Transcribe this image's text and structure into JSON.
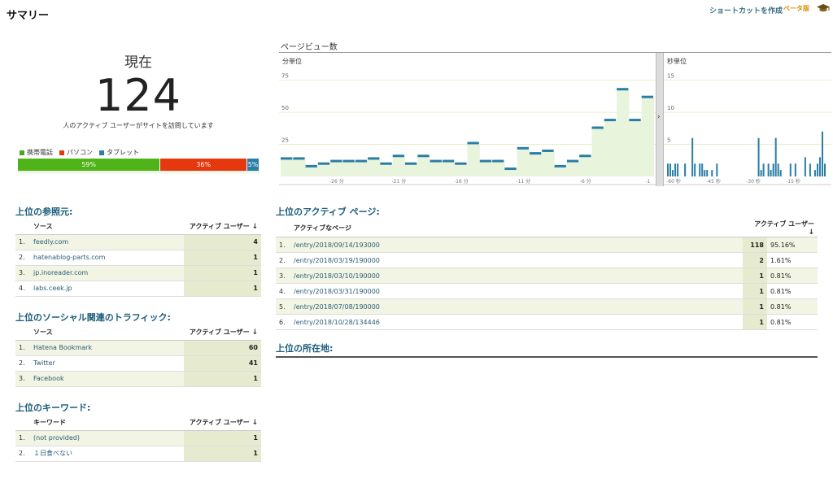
{
  "header": {
    "title": "サマリー",
    "shortcut": "ショートカットを作成",
    "beta": "ベータ版",
    "hat_icon": "graduation-cap-icon"
  },
  "now": {
    "label": "現在",
    "value": "124",
    "desc": "人のアクティブ ユーザーがサイトを訪問しています"
  },
  "devices": {
    "legend": [
      {
        "label": "携帯電話",
        "color": "#4aa61d"
      },
      {
        "label": "パソコン",
        "color": "#e5380e"
      },
      {
        "label": "タブレット",
        "color": "#2a7ea5"
      }
    ],
    "segments": [
      {
        "label": "59%",
        "value": 59,
        "color": "#50b319"
      },
      {
        "label": "36%",
        "value": 36,
        "color": "#e5380e"
      },
      {
        "label": "5%",
        "value": 5,
        "color": "#2a7ea5"
      }
    ]
  },
  "pageviews": {
    "title": "ページビュー数",
    "minutes_label": "分単位",
    "seconds_label": "秒単位"
  },
  "chart_data": [
    {
      "type": "line",
      "title": "分単位",
      "ylim": [
        0,
        90
      ],
      "yticks": [
        25,
        50,
        75
      ],
      "xticks": [
        {
          "x": -26,
          "label": "-26 分"
        },
        {
          "x": -21,
          "label": "-21 分"
        },
        {
          "x": -16,
          "label": "-16 分"
        },
        {
          "x": -11,
          "label": "-11 分"
        },
        {
          "x": -6,
          "label": "-6 分"
        },
        {
          "x": -1,
          "label": "-1"
        }
      ],
      "x": [
        -30,
        -29,
        -28,
        -27,
        -26,
        -25,
        -24,
        -23,
        -22,
        -21,
        -20,
        -19,
        -18,
        -17,
        -16,
        -15,
        -14,
        -13,
        -12,
        -11,
        -10,
        -9,
        -8,
        -7,
        -6,
        -5,
        -4,
        -3,
        -2,
        -1
      ],
      "values": [
        14,
        14,
        8,
        10,
        12,
        12,
        12,
        14,
        10,
        16,
        10,
        16,
        12,
        12,
        10,
        26,
        12,
        12,
        6,
        22,
        18,
        20,
        8,
        12,
        16,
        38,
        44,
        68,
        44,
        62
      ],
      "grid": true
    },
    {
      "type": "bar",
      "title": "秒単位",
      "ylim": [
        0,
        18
      ],
      "yticks": [
        5,
        10,
        15
      ],
      "xticks": [
        {
          "x": -60,
          "label": "-60 秒"
        },
        {
          "x": -45,
          "label": "-45 秒"
        },
        {
          "x": -30,
          "label": "-30 秒"
        },
        {
          "x": -15,
          "label": "-15 秒"
        }
      ],
      "values": [
        2,
        2,
        1,
        2,
        2,
        0,
        0,
        2,
        0,
        0,
        6,
        2,
        0,
        2,
        2,
        1,
        1,
        0,
        1,
        0,
        2,
        0,
        0,
        0,
        0,
        0,
        0,
        0,
        0,
        0,
        0,
        0,
        0,
        0,
        0,
        0,
        0,
        6,
        1,
        2,
        0,
        2,
        1,
        2,
        6,
        2,
        1,
        0,
        0,
        0,
        2,
        0,
        2,
        0,
        0,
        0,
        3,
        0,
        2,
        0,
        1,
        2,
        3,
        7,
        2
      ],
      "grid": true
    }
  ],
  "referrers": {
    "title": "上位の参照元:",
    "col_source": "ソース",
    "col_users": "アクティブ ユーザー",
    "sort_icon": "arrow-down-icon",
    "rows": [
      {
        "n": "1.",
        "label": "feedly.com",
        "value": "4"
      },
      {
        "n": "2.",
        "label": "hatenablog-parts.com",
        "value": "1"
      },
      {
        "n": "3.",
        "label": "jp.inoreader.com",
        "value": "1"
      },
      {
        "n": "4.",
        "label": "labs.ceek.jp",
        "value": "1"
      }
    ]
  },
  "social": {
    "title": "上位のソーシャル関連のトラフィック:",
    "col_source": "ソース",
    "col_users": "アクティブ ユーザー",
    "rows": [
      {
        "n": "1.",
        "label": "Hatena Bookmark",
        "value": "60"
      },
      {
        "n": "2.",
        "label": "Twitter",
        "value": "41"
      },
      {
        "n": "3.",
        "label": "Facebook",
        "value": "1"
      }
    ]
  },
  "keywords": {
    "title": "上位のキーワード:",
    "col_keyword": "キーワード",
    "col_users": "アクティブ ユーザー",
    "rows": [
      {
        "n": "1.",
        "label": "(not provided)",
        "value": "1"
      },
      {
        "n": "2.",
        "label": "１日食べない",
        "value": "1"
      }
    ]
  },
  "active_pages": {
    "title": "上位のアクティブ ページ:",
    "col_page": "アクティブなページ",
    "col_users": "アクティブ ユーザー",
    "rows": [
      {
        "n": "1.",
        "label": "/entry/2018/09/14/193000",
        "value": "118",
        "pct": "95.16%"
      },
      {
        "n": "2.",
        "label": "/entry/2018/03/19/190000",
        "value": "2",
        "pct": "1.61%"
      },
      {
        "n": "3.",
        "label": "/entry/2018/03/10/190000",
        "value": "1",
        "pct": "0.81%"
      },
      {
        "n": "4.",
        "label": "/entry/2018/03/31/190000",
        "value": "1",
        "pct": "0.81%"
      },
      {
        "n": "5.",
        "label": "/entry/2018/07/08/190000",
        "value": "1",
        "pct": "0.81%"
      },
      {
        "n": "6.",
        "label": "/entry/2018/10/28/134446",
        "value": "1",
        "pct": "0.81%"
      }
    ]
  },
  "locations": {
    "title": "上位の所在地:"
  }
}
